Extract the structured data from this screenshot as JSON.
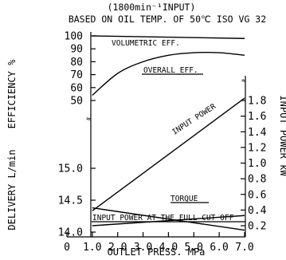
{
  "chart_data": {
    "type": "line",
    "title": "(1800min⁻¹INPUT)",
    "subtitle": "BASED ON OIL TEMP. OF 50℃ ISO VG 32",
    "xlabel": "OUTLET PRESS. MPa",
    "x_ticks": [
      "0",
      "1.0",
      "2.0",
      "3.0",
      "4.0",
      "5.0",
      "6.0",
      "7.0"
    ],
    "xlim": [
      0,
      7
    ],
    "left_axes": {
      "efficiency": {
        "label": "EFFICIENCY %",
        "ticks": [
          50,
          60,
          70,
          80,
          90,
          100
        ]
      },
      "delivery": {
        "label": "DELIVERY L/min",
        "ticks": [
          14.0,
          14.5,
          15.0
        ]
      }
    },
    "right_axis": {
      "label": "INPUT POWER kW",
      "ticks": [
        "0.2",
        "0.4",
        "0.6",
        "0.8",
        "1.0",
        "1.2",
        "1.4",
        "1.6",
        "1.8"
      ]
    },
    "series": [
      {
        "name": "VOLUMETRIC EFF.",
        "axis": "efficiency",
        "x": [
          1.0,
          7.0
        ],
        "y": [
          100,
          98
        ]
      },
      {
        "name": "OVERALL EFF.",
        "axis": "efficiency",
        "x": [
          1.0,
          2.0,
          3.0,
          4.0,
          5.0,
          6.0,
          7.0
        ],
        "y": [
          54,
          71,
          80,
          85,
          87,
          87,
          85
        ]
      },
      {
        "name": "INPUT POWER",
        "axis": "power",
        "x": [
          1.0,
          7.0
        ],
        "y": [
          0.39,
          1.83
        ]
      },
      {
        "name": "TORQUE",
        "axis": "delivery",
        "x": [
          1.0,
          7.0
        ],
        "y": [
          14.38,
          14.03
        ]
      },
      {
        "name": "INPUT POWER AT THE FULL CUT OFF",
        "axis": "power",
        "x": [
          1.0,
          7.0
        ],
        "y": [
          0.2,
          0.33
        ]
      }
    ]
  }
}
